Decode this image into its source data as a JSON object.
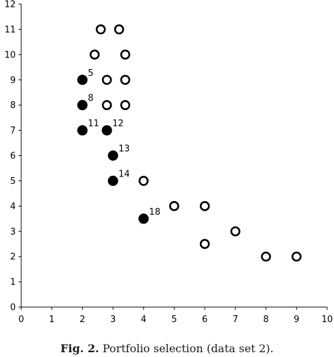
{
  "chart_data": {
    "type": "scatter",
    "xlim": [
      0,
      10
    ],
    "ylim": [
      0,
      12
    ],
    "x_ticks": [
      "0",
      "1",
      "2",
      "3",
      "4",
      "5",
      "6",
      "7",
      "8",
      "9",
      "10"
    ],
    "y_ticks": [
      "0",
      "1",
      "2",
      "3",
      "4",
      "5",
      "6",
      "7",
      "8",
      "9",
      "10",
      "11",
      "12"
    ],
    "grid": false,
    "legend": "none",
    "series": [
      {
        "marker": "filled-circle",
        "color": "#000000",
        "points": [
          {
            "x": 2,
            "y": 9,
            "label": "5"
          },
          {
            "x": 2,
            "y": 8,
            "label": "8"
          },
          {
            "x": 2,
            "y": 7,
            "label": "11"
          },
          {
            "x": 2.8,
            "y": 7,
            "label": "12"
          },
          {
            "x": 3,
            "y": 6,
            "label": "13"
          },
          {
            "x": 3,
            "y": 5,
            "label": "14"
          },
          {
            "x": 4,
            "y": 3.5,
            "label": "18"
          }
        ]
      },
      {
        "marker": "hollow-circle",
        "color": "#000000",
        "points": [
          {
            "x": 2.6,
            "y": 11
          },
          {
            "x": 3.2,
            "y": 11
          },
          {
            "x": 2.4,
            "y": 10
          },
          {
            "x": 3.4,
            "y": 10
          },
          {
            "x": 2.8,
            "y": 9
          },
          {
            "x": 3.4,
            "y": 9
          },
          {
            "x": 2.8,
            "y": 8
          },
          {
            "x": 3.4,
            "y": 8
          },
          {
            "x": 4,
            "y": 5
          },
          {
            "x": 5,
            "y": 4
          },
          {
            "x": 6,
            "y": 4
          },
          {
            "x": 7,
            "y": 3
          },
          {
            "x": 6,
            "y": 2.5
          },
          {
            "x": 8,
            "y": 2
          },
          {
            "x": 9,
            "y": 2
          }
        ]
      }
    ]
  },
  "caption": {
    "figure_label": "Fig. 2.",
    "text": "Portfolio selection (data set 2)."
  }
}
